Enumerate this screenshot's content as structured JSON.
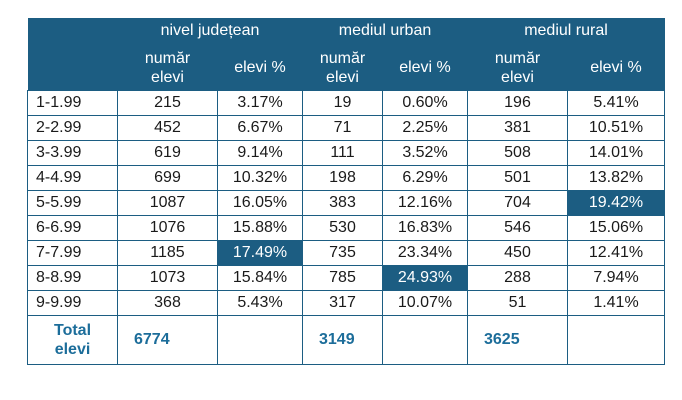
{
  "header": {
    "groups": [
      "nivel județean",
      "mediul urban",
      "mediul rural"
    ],
    "num_label_line1": "număr",
    "num_label_line2": "elevi",
    "pct_label": "elevi %"
  },
  "rows": [
    {
      "label": "1-1.99",
      "cells": [
        "215",
        "3.17%",
        "19",
        "0.60%",
        "196",
        "5.41%"
      ]
    },
    {
      "label": "2-2.99",
      "cells": [
        "452",
        "6.67%",
        "71",
        "2.25%",
        "381",
        "10.51%"
      ]
    },
    {
      "label": "3-3.99",
      "cells": [
        "619",
        "9.14%",
        "111",
        "3.52%",
        "508",
        "14.01%"
      ]
    },
    {
      "label": "4-4.99",
      "cells": [
        "699",
        "10.32%",
        "198",
        "6.29%",
        "501",
        "13.82%"
      ]
    },
    {
      "label": "5-5.99",
      "cells": [
        "1087",
        "16.05%",
        "383",
        "12.16%",
        "704",
        "19.42%"
      ]
    },
    {
      "label": "6-6.99",
      "cells": [
        "1076",
        "15.88%",
        "530",
        "16.83%",
        "546",
        "15.06%"
      ]
    },
    {
      "label": "7-7.99",
      "cells": [
        "1185",
        "17.49%",
        "735",
        "23.34%",
        "450",
        "12.41%"
      ]
    },
    {
      "label": "8-8.99",
      "cells": [
        "1073",
        "15.84%",
        "785",
        "24.93%",
        "288",
        "7.94%"
      ]
    },
    {
      "label": "9-9.99",
      "cells": [
        "368",
        "5.43%",
        "317",
        "10.07%",
        "51",
        "1.41%"
      ]
    }
  ],
  "total": {
    "label_line1": "Total",
    "label_line2": "elevi",
    "values": [
      "6774",
      "3149",
      "3625"
    ]
  },
  "colors": {
    "accent": "#1c5d82",
    "total_text": "#1c6d9a"
  }
}
